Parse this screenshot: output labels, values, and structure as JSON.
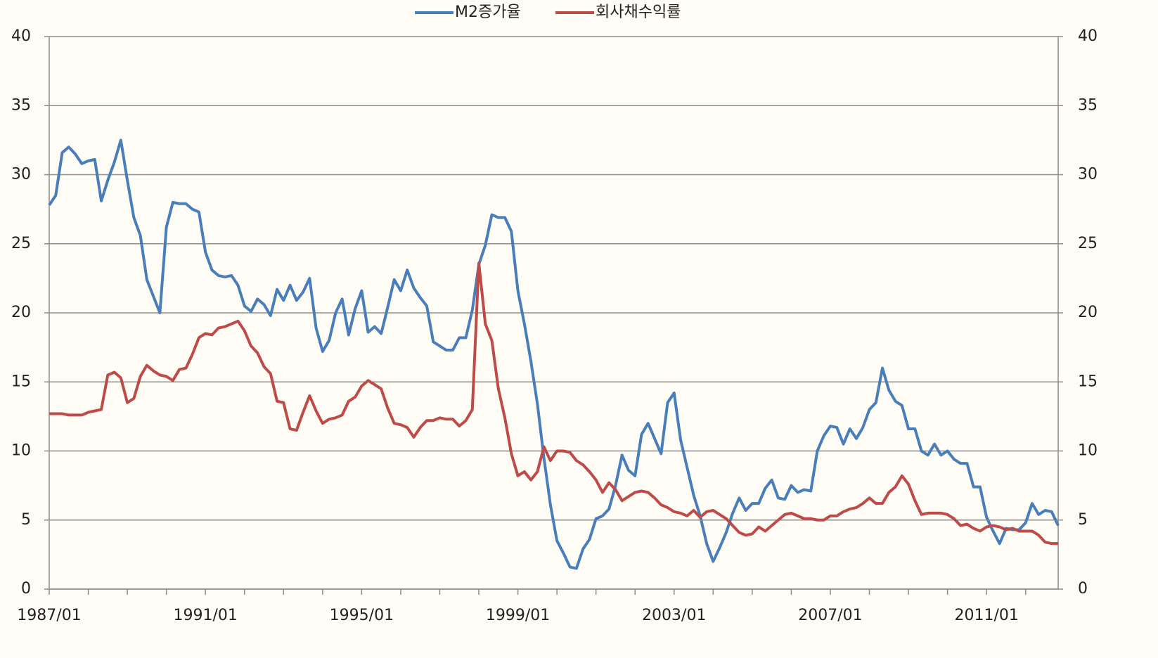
{
  "chart_data": {
    "type": "line",
    "categories": [
      "1987/01",
      null,
      null,
      null,
      null,
      null,
      null,
      null,
      null,
      null,
      null,
      null,
      null,
      null,
      null,
      null,
      null,
      null,
      null,
      null,
      null,
      null,
      null,
      null,
      "1991/01",
      null,
      null,
      null,
      null,
      null,
      null,
      null,
      null,
      null,
      null,
      null,
      null,
      null,
      null,
      null,
      null,
      null,
      null,
      null,
      null,
      null,
      null,
      null,
      "1995/01",
      null,
      null,
      null,
      null,
      null,
      null,
      null,
      null,
      null,
      null,
      null,
      null,
      null,
      null,
      null,
      null,
      null,
      null,
      null,
      null,
      null,
      null,
      null,
      "1999/01",
      null,
      null,
      null,
      null,
      null,
      null,
      null,
      null,
      null,
      null,
      null,
      null,
      null,
      null,
      null,
      null,
      null,
      null,
      null,
      null,
      null,
      null,
      null,
      "2003/01",
      null,
      null,
      null,
      null,
      null,
      null,
      null,
      null,
      null,
      null,
      null,
      null,
      null,
      null,
      null,
      null,
      null,
      null,
      null,
      null,
      null,
      null,
      null,
      "2007/01",
      null,
      null,
      null,
      null,
      null,
      null,
      null,
      null,
      null,
      null,
      null,
      null,
      null,
      null,
      null,
      null,
      null,
      null,
      null,
      null,
      null,
      null,
      null,
      "2011/01",
      null,
      null,
      null,
      null,
      null,
      null,
      null,
      null,
      null,
      null,
      null
    ],
    "series": [
      {
        "name": "M2증가율",
        "color": "#4a7ebb",
        "values": [
          27.8,
          28.5,
          31.6,
          32.0,
          31.5,
          30.8,
          31.0,
          31.1,
          28.1,
          29.6,
          30.9,
          32.5,
          29.6,
          26.9,
          25.6,
          22.4,
          21.2,
          20.0,
          26.2,
          28.0,
          27.9,
          27.9,
          27.5,
          27.3,
          24.4,
          23.1,
          22.7,
          22.6,
          22.7,
          22.0,
          20.5,
          20.1,
          21.0,
          20.6,
          19.8,
          21.7,
          20.9,
          22.0,
          20.9,
          21.5,
          22.5,
          18.9,
          17.2,
          18.0,
          20.0,
          21.0,
          18.4,
          20.3,
          21.6,
          18.6,
          19.0,
          18.5,
          20.4,
          22.4,
          21.6,
          23.1,
          21.8,
          21.1,
          20.5,
          17.9,
          17.6,
          17.3,
          17.3,
          18.2,
          18.2,
          20.2,
          23.5,
          24.9,
          27.1,
          26.9,
          26.9,
          25.9,
          21.6,
          19.2,
          16.5,
          13.4,
          9.5,
          6.1,
          3.5,
          2.6,
          1.6,
          1.5,
          2.9,
          3.6,
          5.1,
          5.3,
          5.8,
          7.5,
          9.7,
          8.6,
          8.2,
          11.2,
          12.0,
          10.9,
          9.8,
          13.5,
          14.2,
          10.8,
          8.8,
          6.8,
          5.3,
          3.3,
          2.0,
          3.0,
          4.1,
          5.5,
          6.6,
          5.7,
          6.2,
          6.2,
          7.3,
          7.9,
          6.6,
          6.5,
          7.5,
          7.0,
          7.2,
          7.1,
          10.0,
          11.1,
          11.8,
          11.7,
          10.5,
          11.6,
          10.9,
          11.7,
          13.0,
          13.5,
          16.0,
          14.4,
          13.6,
          13.3,
          11.6,
          11.6,
          10.0,
          9.7,
          10.5,
          9.7,
          10.0,
          9.4,
          9.1,
          9.1,
          7.4,
          7.4,
          5.2,
          4.2,
          3.3,
          4.4,
          4.3,
          4.3,
          4.8,
          6.2,
          5.4,
          5.7,
          5.6,
          4.6
        ]
      },
      {
        "name": "회사채수익률",
        "color": "#be4b48",
        "values": [
          12.7,
          12.7,
          12.7,
          12.6,
          12.6,
          12.6,
          12.8,
          12.9,
          13.0,
          15.5,
          15.7,
          15.3,
          13.5,
          13.8,
          15.4,
          16.2,
          15.8,
          15.5,
          15.4,
          15.1,
          15.9,
          16.0,
          17.0,
          18.2,
          18.5,
          18.4,
          18.9,
          19.0,
          19.2,
          19.4,
          18.7,
          17.6,
          17.1,
          16.1,
          15.6,
          13.6,
          13.5,
          11.6,
          11.5,
          12.8,
          14.0,
          12.9,
          12.0,
          12.3,
          12.4,
          12.6,
          13.6,
          13.9,
          14.7,
          15.1,
          14.8,
          14.5,
          13.1,
          12.0,
          11.9,
          11.7,
          11.0,
          11.7,
          12.2,
          12.2,
          12.4,
          12.3,
          12.3,
          11.8,
          12.2,
          13.0,
          23.6,
          19.2,
          18.0,
          14.5,
          12.4,
          9.8,
          8.2,
          8.5,
          7.9,
          8.5,
          10.3,
          9.3,
          10.0,
          10.0,
          9.9,
          9.3,
          9.0,
          8.5,
          7.9,
          7.0,
          7.7,
          7.2,
          6.4,
          6.7,
          7.0,
          7.1,
          7.0,
          6.6,
          6.1,
          5.9,
          5.6,
          5.5,
          5.3,
          5.7,
          5.2,
          5.6,
          5.7,
          5.4,
          5.1,
          4.6,
          4.1,
          3.9,
          4.0,
          4.5,
          4.2,
          4.6,
          5.0,
          5.4,
          5.5,
          5.3,
          5.1,
          5.1,
          5.0,
          5.0,
          5.3,
          5.3,
          5.6,
          5.8,
          5.9,
          6.2,
          6.6,
          6.2,
          6.2,
          7.0,
          7.4,
          8.2,
          7.6,
          6.4,
          5.4,
          5.5,
          5.5,
          5.5,
          5.4,
          5.1,
          4.6,
          4.7,
          4.4,
          4.2,
          4.5,
          4.6,
          4.5,
          4.3,
          4.4,
          4.2,
          4.2,
          4.2,
          3.9,
          3.4,
          3.3,
          3.3
        ]
      }
    ],
    "ylim": [
      0,
      40
    ],
    "yticks": [
      0,
      5,
      10,
      15,
      20,
      25,
      30,
      35,
      40
    ],
    "y2lim": [
      0,
      40
    ],
    "y2ticks": [
      0,
      5,
      10,
      15,
      20,
      25,
      30,
      35,
      40
    ],
    "grid": true,
    "legend": "top"
  }
}
